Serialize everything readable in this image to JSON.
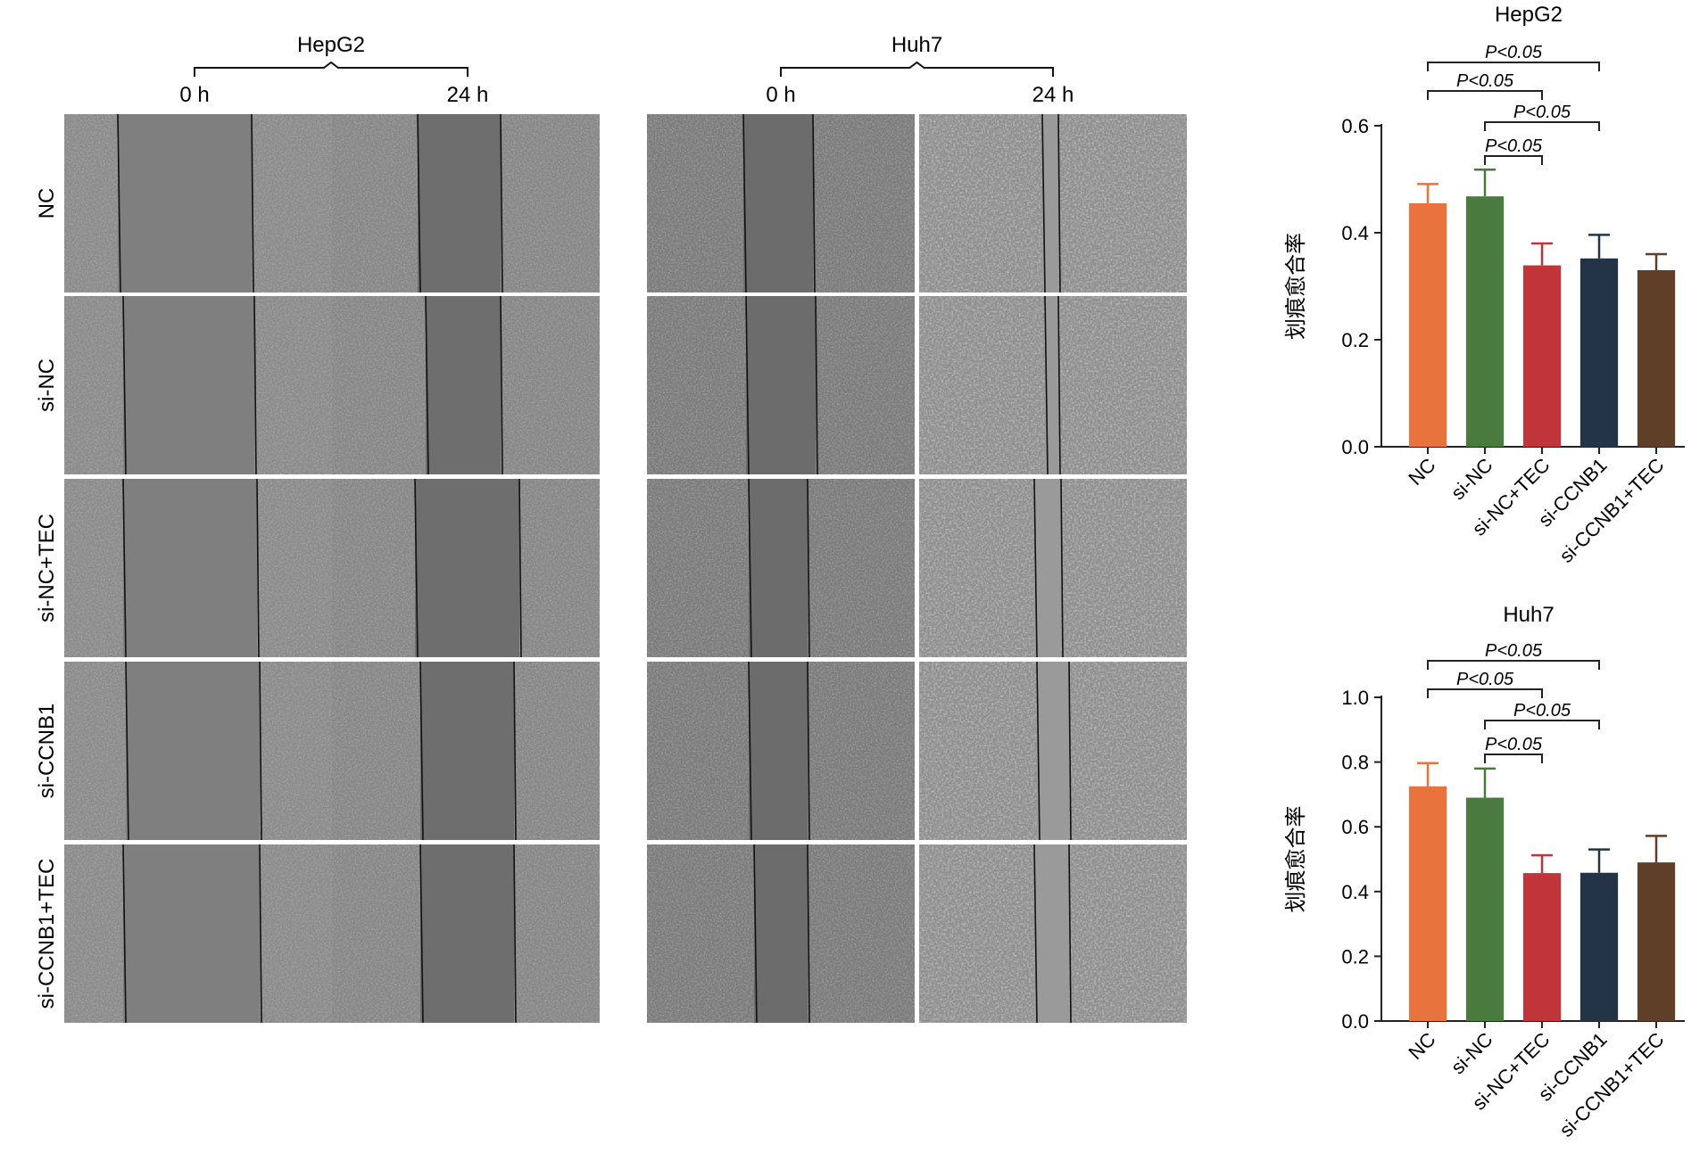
{
  "micrographs": {
    "rows": [
      "NC",
      "si-NC",
      "si-NC+TEC",
      "si-CCNB1",
      "si-CCNB1+TEC"
    ],
    "panels": [
      {
        "cell_line": "HepG2",
        "timepoints": [
          "0 h",
          "24 h"
        ]
      },
      {
        "cell_line": "Huh7",
        "timepoints": [
          "0 h",
          "24 h"
        ]
      }
    ],
    "colors": {
      "background_cells": "#8c8c8c",
      "gap": "#6e6e6e",
      "edge_line": "#111111"
    }
  },
  "chart_data": [
    {
      "type": "bar",
      "title": "HepG2",
      "ylabel": "划痕愈合率",
      "xlabel": "",
      "categories": [
        "NC",
        "si-NC",
        "si-NC+TEC",
        "si-CCNB1",
        "si-CCNB1+TEC"
      ],
      "values": [
        0.455,
        0.468,
        0.339,
        0.352,
        0.33
      ],
      "errors": [
        0.036,
        0.05,
        0.041,
        0.044,
        0.03
      ],
      "colors": [
        "#e8733c",
        "#4a7a3d",
        "#c0343a",
        "#233447",
        "#5f3f28"
      ],
      "ylim": [
        0,
        0.6
      ],
      "yticks": [
        "0.0",
        "0.2",
        "0.4",
        "0.6"
      ],
      "grid": false,
      "significance": [
        {
          "from": 0,
          "to": 3,
          "label": "P<0.05"
        },
        {
          "from": 0,
          "to": 2,
          "label": "P<0.05"
        },
        {
          "from": 1,
          "to": 3,
          "label": "P<0.05"
        },
        {
          "from": 1,
          "to": 2,
          "label": "P<0.05"
        }
      ]
    },
    {
      "type": "bar",
      "title": "Huh7",
      "ylabel": "划痕愈合率",
      "xlabel": "",
      "categories": [
        "NC",
        "si-NC",
        "si-NC+TEC",
        "si-CCNB1",
        "si-CCNB1+TEC"
      ],
      "values": [
        0.725,
        0.69,
        0.457,
        0.458,
        0.49
      ],
      "errors": [
        0.072,
        0.09,
        0.055,
        0.072,
        0.082
      ],
      "colors": [
        "#e8733c",
        "#4a7a3d",
        "#c0343a",
        "#233447",
        "#5f3f28"
      ],
      "ylim": [
        0,
        1.0
      ],
      "yticks": [
        "0.0",
        "0.2",
        "0.4",
        "0.6",
        "0.8",
        "1.0"
      ],
      "grid": false,
      "significance": [
        {
          "from": 0,
          "to": 3,
          "label": "P<0.05"
        },
        {
          "from": 0,
          "to": 2,
          "label": "P<0.05"
        },
        {
          "from": 1,
          "to": 3,
          "label": "P<0.05"
        },
        {
          "from": 1,
          "to": 2,
          "label": "P<0.05"
        }
      ]
    }
  ]
}
